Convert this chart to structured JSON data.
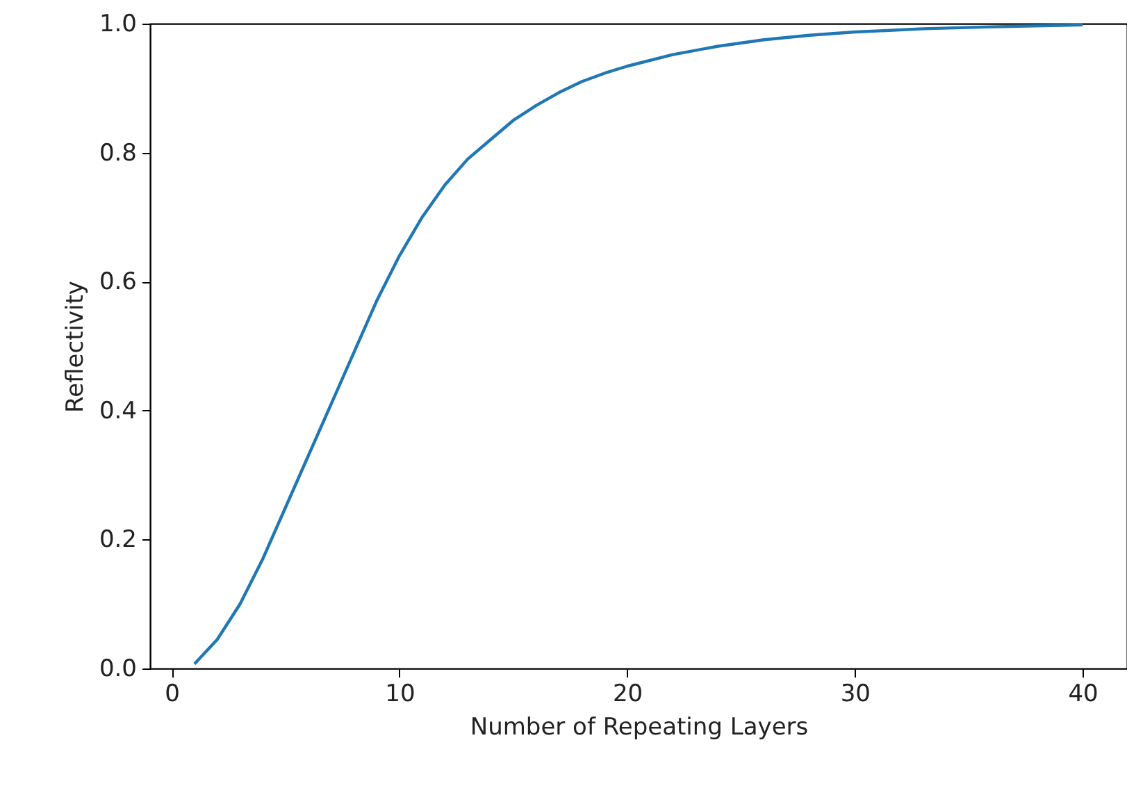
{
  "chart_data": {
    "type": "line",
    "xlabel": "Number of Repeating Layers",
    "ylabel": "Reflectivity",
    "x": [
      1,
      2,
      3,
      4,
      5,
      6,
      7,
      8,
      9,
      10,
      11,
      12,
      13,
      14,
      15,
      16,
      17,
      18,
      19,
      20,
      22,
      24,
      26,
      28,
      30,
      33,
      36,
      40
    ],
    "series": [
      {
        "color": "#1f77b4",
        "values": [
          0.007,
          0.045,
          0.1,
          0.17,
          0.25,
          0.33,
          0.41,
          0.49,
          0.57,
          0.64,
          0.7,
          0.75,
          0.79,
          0.82,
          0.85,
          0.873,
          0.893,
          0.91,
          0.923,
          0.934,
          0.952,
          0.965,
          0.975,
          0.982,
          0.987,
          0.992,
          0.995,
          0.998
        ]
      }
    ],
    "xlim": [
      -0.95,
      41.95
    ],
    "ylim": [
      0,
      1
    ],
    "xticks": [
      0,
      10,
      20,
      30,
      40
    ],
    "yticks": [
      {
        "value": 0,
        "label": "0.0"
      },
      0.2,
      0.4,
      0.6,
      0.8,
      {
        "value": 1,
        "label": "1.0"
      }
    ],
    "grid": false
  }
}
